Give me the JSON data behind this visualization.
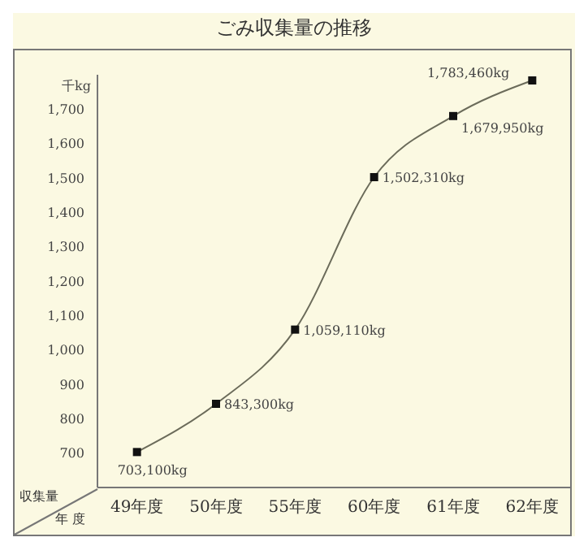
{
  "chart_data": {
    "type": "line",
    "title": "ごみ収集量の推移",
    "ylabel": "千kg",
    "categories": [
      "49年度",
      "50年度",
      "55年度",
      "60年度",
      "61年度",
      "62年度"
    ],
    "series": [
      {
        "color": "#6b6b5a",
        "values": [
          703.1,
          843.3,
          1059.11,
          1502.31,
          1679.95,
          1783.46
        ]
      }
    ],
    "ylim": [
      600,
      1800
    ],
    "yticks": [
      700,
      800,
      900,
      {
        "value": 1000,
        "label": "1,000"
      },
      {
        "value": 1100,
        "label": "1,100"
      },
      {
        "value": 1200,
        "label": "1,200"
      },
      {
        "value": 1300,
        "label": "1,300"
      },
      {
        "value": 1400,
        "label": "1,400"
      },
      {
        "value": 1500,
        "label": "1,500"
      },
      {
        "value": 1600,
        "label": "1,600"
      },
      {
        "value": 1700,
        "label": "1,700"
      }
    ],
    "marker": "square",
    "line_style": "solid",
    "annotations": [
      "収集量",
      "年 度",
      {
        "text": "703,100kg",
        "x": "49年度",
        "y": 703.1
      },
      {
        "text": "843,300kg",
        "x": "50年度",
        "y": 843.3
      },
      {
        "text": "1,059,110kg",
        "x": "55年度",
        "y": 1059.11
      },
      {
        "text": "1,502,310kg",
        "x": "60年度",
        "y": 1502.31
      },
      {
        "text": "1,679,950kg",
        "x": "61年度",
        "y": 1679.95
      },
      {
        "text": "1,783,460kg",
        "x": "62年度",
        "y": 1783.46
      }
    ]
  }
}
